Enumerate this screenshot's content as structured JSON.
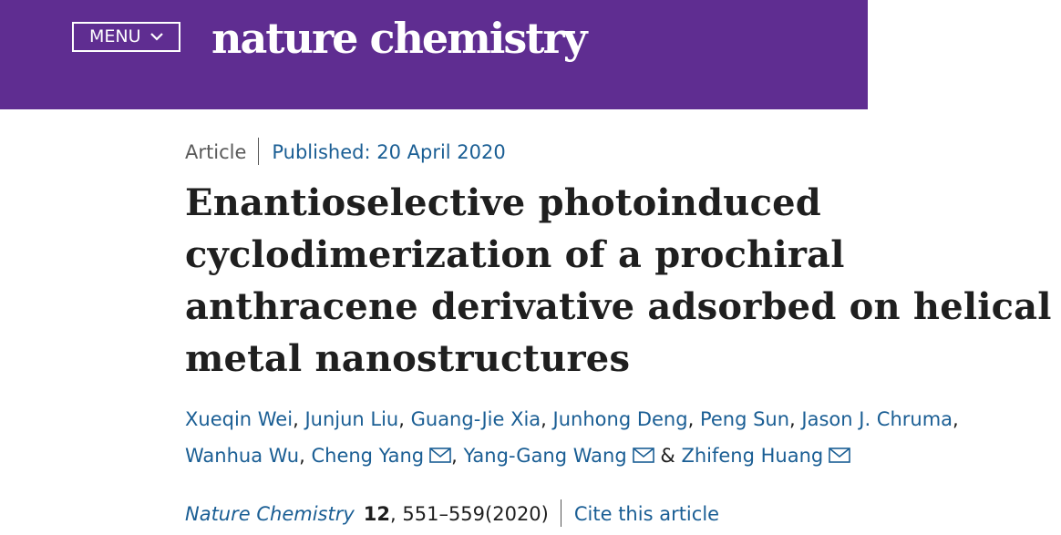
{
  "header": {
    "menu_label": "MENU",
    "logo_text": "nature chemistry",
    "background_color": "#5f2d91"
  },
  "article": {
    "type": "Article",
    "published": "Published: 20 April 2020",
    "title_lines": [
      "Enantioselective photoinduced",
      "cyclodimerization of a prochiral",
      "anthracene derivative adsorbed on helical",
      "metal nanostructures"
    ]
  },
  "authors": [
    {
      "name": "Xueqin Wei",
      "mail": false
    },
    {
      "name": "Junjun Liu",
      "mail": false
    },
    {
      "name": "Guang-Jie Xia",
      "mail": false
    },
    {
      "name": "Junhong Deng",
      "mail": false
    },
    {
      "name": "Peng Sun",
      "mail": false
    },
    {
      "name": "Jason J. Chruma",
      "mail": false
    },
    {
      "name": "Wanhua Wu",
      "mail": false
    },
    {
      "name": "Cheng Yang",
      "mail": true
    },
    {
      "name": "Yang-Gang Wang",
      "mail": true
    },
    {
      "name": "Zhifeng Huang",
      "mail": true
    }
  ],
  "author_separators": {
    "comma": ",",
    "ampersand": "&"
  },
  "citation": {
    "journal": "Nature Chemistry",
    "volume": "12",
    "pages_year": ", 551–559(2020)",
    "cite_label": "Cite this article"
  },
  "icons": {
    "menu_chevron": "chevron-down-icon",
    "author_mail": "mail-icon"
  }
}
